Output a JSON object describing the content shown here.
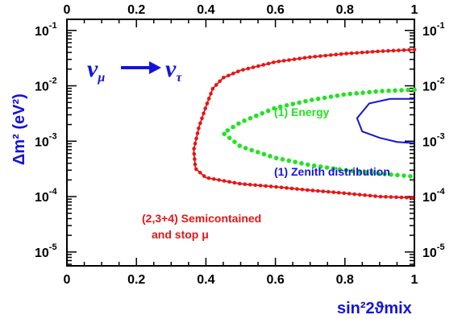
{
  "chart_data": {
    "type": "line",
    "xlabel": "sin²2ϑmix",
    "ylabel": "Δm² (eV²)",
    "xlim": [
      0,
      1
    ],
    "ylim_log10": [
      -5.25,
      -0.8
    ],
    "xscale": "linear",
    "yscale": "log",
    "grid": false,
    "x_ticks": [
      "0",
      "0.2",
      "0.4",
      "0.6",
      "0.8",
      "1"
    ],
    "y_ticks": [
      {
        "base": "10",
        "exp": "-1",
        "value": 0.1
      },
      {
        "base": "10",
        "exp": "-2",
        "value": 0.01
      },
      {
        "base": "10",
        "exp": "-3",
        "value": 0.001
      },
      {
        "base": "10",
        "exp": "-4",
        "value": 0.0001
      },
      {
        "base": "10",
        "exp": "-5",
        "value": 1e-05
      }
    ],
    "annotation_channel": {
      "from": "ν",
      "from_sub": "μ",
      "to": "ν",
      "to_sub": "τ"
    },
    "series": [
      {
        "name": "(2,3+4) Semicontained",
        "name_line2": "and stop μ",
        "color": "#e81414",
        "style": "dotted-line",
        "closed": false,
        "points": [
          [
            1.0,
            0.045
          ],
          [
            0.9,
            0.042
          ],
          [
            0.8,
            0.038
          ],
          [
            0.7,
            0.033
          ],
          [
            0.6,
            0.027
          ],
          [
            0.5,
            0.019
          ],
          [
            0.45,
            0.014
          ],
          [
            0.42,
            0.009
          ],
          [
            0.4,
            0.0042
          ],
          [
            0.38,
            0.0018
          ],
          [
            0.365,
            0.0007
          ],
          [
            0.37,
            0.00032
          ],
          [
            0.4,
            0.00022
          ],
          [
            0.5,
            0.00017
          ],
          [
            0.6,
            0.00015
          ],
          [
            0.7,
            0.00013
          ],
          [
            0.8,
            0.000115
          ],
          [
            0.9,
            0.0001
          ],
          [
            1.0,
            9.5e-05
          ]
        ]
      },
      {
        "name": "(1) Energy",
        "color": "#21e321",
        "style": "dotted",
        "closed": false,
        "points": [
          [
            1.0,
            0.0085
          ],
          [
            0.9,
            0.008
          ],
          [
            0.8,
            0.007
          ],
          [
            0.7,
            0.0055
          ],
          [
            0.6,
            0.004
          ],
          [
            0.5,
            0.0022
          ],
          [
            0.45,
            0.0014
          ],
          [
            0.5,
            0.0008
          ],
          [
            0.6,
            0.0005
          ],
          [
            0.7,
            0.00037
          ],
          [
            0.8,
            0.0003
          ],
          [
            0.9,
            0.00026
          ],
          [
            1.0,
            0.00023
          ]
        ]
      },
      {
        "name": "(1) Zenith distribution",
        "color": "#1414d6",
        "style": "solid",
        "closed": false,
        "points": [
          [
            1.0,
            0.0058
          ],
          [
            0.93,
            0.0058
          ],
          [
            0.87,
            0.0048
          ],
          [
            0.835,
            0.0026
          ],
          [
            0.85,
            0.0015
          ],
          [
            0.9,
            0.00115
          ],
          [
            0.95,
            0.00097
          ],
          [
            1.0,
            0.00092
          ]
        ]
      }
    ]
  }
}
